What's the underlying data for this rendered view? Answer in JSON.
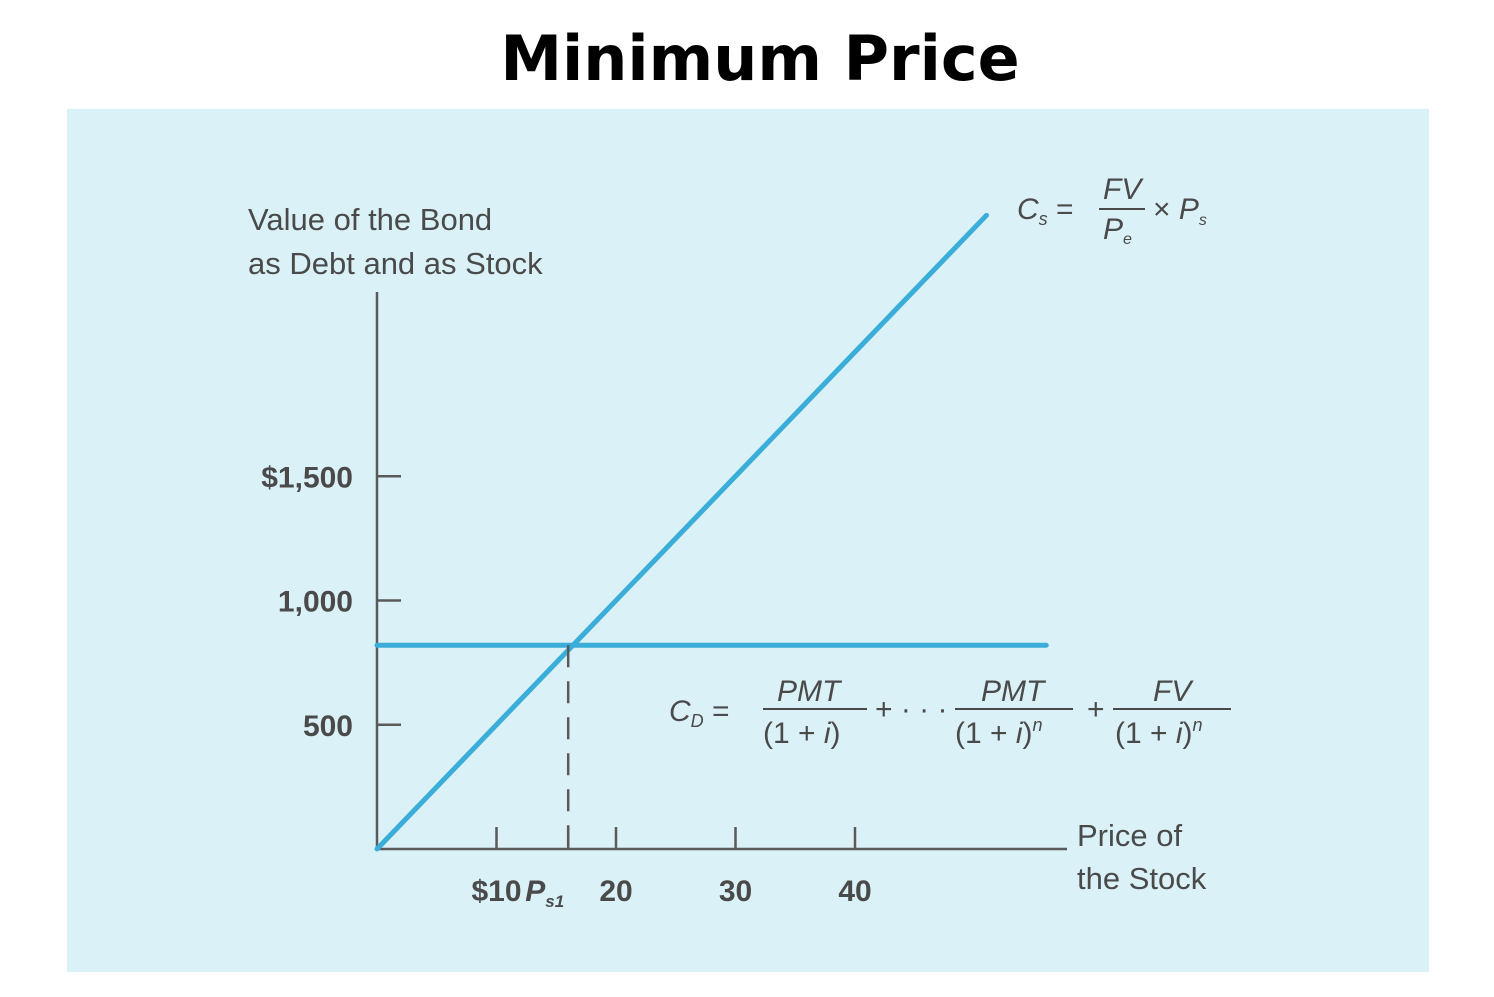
{
  "slide": {
    "title": "Minimum Price"
  },
  "chart_data": {
    "type": "line",
    "xlabel": "Price of\nthe Stock",
    "ylabel": "Value of the Bond\nas Debt and as Stock",
    "xlim": [
      0,
      52
    ],
    "ylim": [
      0,
      2200
    ],
    "x_ticks": [
      {
        "value": 10,
        "label": "$10"
      },
      {
        "value": 16,
        "label": "P_s1"
      },
      {
        "value": 20,
        "label": "20"
      },
      {
        "value": 30,
        "label": "30"
      },
      {
        "value": 40,
        "label": "40"
      }
    ],
    "y_ticks": [
      {
        "value": 500,
        "label": "500"
      },
      {
        "value": 1000,
        "label": "1,000"
      },
      {
        "value": 1500,
        "label": "$1,500"
      }
    ],
    "series": [
      {
        "name": "stock_value",
        "x": [
          0,
          51
        ],
        "y": [
          0,
          2550
        ]
      },
      {
        "name": "debt_value",
        "x": [
          0,
          56
        ],
        "y": [
          820,
          820
        ]
      }
    ],
    "intersection": {
      "x": 16,
      "y": 820
    },
    "annotations": {
      "stock_formula": "C_s = FV / P_e × P_s",
      "debt_formula": "C_D = PMT/(1+i) + ··· PMT/(1+i)^n + FV/(1+i)^n"
    },
    "colors": {
      "line": "#3aaed8",
      "axis": "#5a5a5a",
      "background": "#dbf1f8",
      "text": "#4a4a4a"
    }
  }
}
